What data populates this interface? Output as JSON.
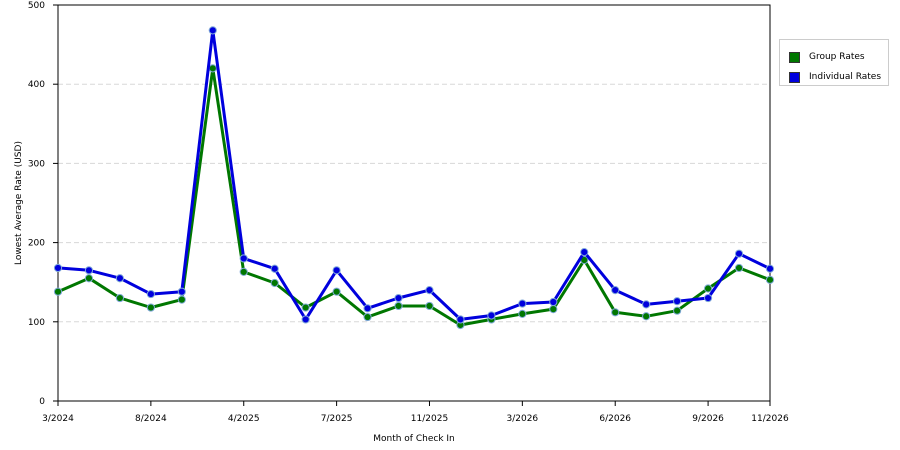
{
  "chart_data": {
    "type": "line",
    "xlabel": "Month of Check In",
    "ylabel": "Lowest Average Rate (USD)",
    "ylim": [
      0,
      500
    ],
    "yticks": [
      "0",
      "100",
      "200",
      "300",
      "400",
      "500"
    ],
    "x_tick_labels": [
      "3/2024",
      "8/2024",
      "4/2025",
      "7/2025",
      "11/2025",
      "3/2026",
      "6/2026",
      "9/2026",
      "11/2026"
    ],
    "x_tick_indices": [
      0,
      3,
      6,
      9,
      12,
      15,
      18,
      21,
      23
    ],
    "point_count": 24,
    "grid": true,
    "legend_position": "right",
    "series": [
      {
        "name": "Group Rates",
        "color": "#007700",
        "values": [
          138,
          155,
          130,
          118,
          128,
          420,
          163,
          149,
          118,
          138,
          106,
          120,
          120,
          96,
          103,
          110,
          116,
          178,
          112,
          107,
          114,
          142,
          168,
          153
        ]
      },
      {
        "name": "Individual Rates",
        "color": "#0000dd",
        "values": [
          168,
          165,
          155,
          135,
          138,
          468,
          180,
          167,
          103,
          165,
          117,
          130,
          140,
          103,
          108,
          123,
          125,
          188,
          140,
          122,
          126,
          130,
          186,
          167
        ]
      }
    ]
  }
}
